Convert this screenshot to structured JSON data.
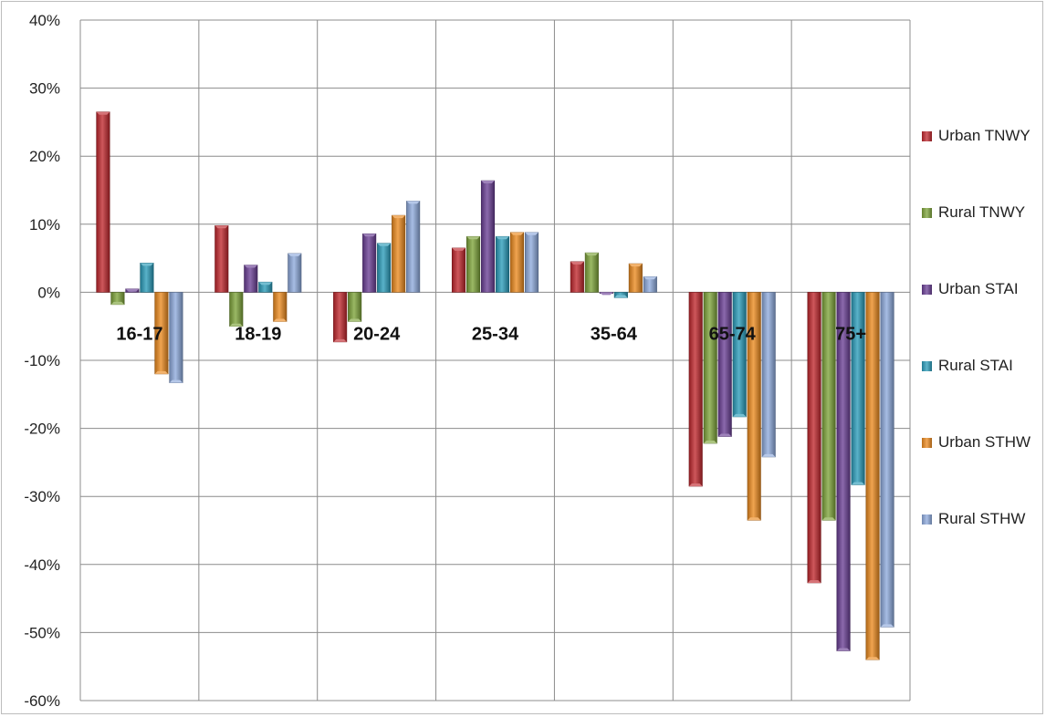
{
  "chart_data": {
    "type": "bar",
    "categories": [
      "16-17",
      "18-19",
      "20-24",
      "25-34",
      "35-64",
      "65-74",
      "75+"
    ],
    "ylim": [
      -0.6,
      0.4
    ],
    "yticks": [
      "40%",
      "30%",
      "20%",
      "10%",
      "0%",
      "-10%",
      "-20%",
      "-30%",
      "-40%",
      "-50%",
      "-60%"
    ],
    "grid": true,
    "legend_position": "right",
    "series": [
      {
        "name": "Urban TNWY",
        "color": "#c0272d",
        "values": [
          0.265,
          0.098,
          -0.073,
          0.065,
          0.045,
          -0.285,
          -0.427
        ]
      },
      {
        "name": "Rural TNWY",
        "color": "#7ea43a",
        "values": [
          -0.018,
          -0.05,
          -0.043,
          0.082,
          0.058,
          -0.222,
          -0.335
        ]
      },
      {
        "name": "Urban STAI",
        "color": "#6a3f95",
        "values": [
          0.005,
          0.04,
          0.086,
          0.164,
          0.0,
          -0.212,
          -0.527
        ]
      },
      {
        "name": "Rural STAI",
        "color": "#2a9cba",
        "values": [
          0.043,
          0.015,
          0.072,
          0.082,
          -0.008,
          -0.183,
          -0.283
        ]
      },
      {
        "name": "Urban STHW",
        "color": "#ec8a1f",
        "values": [
          -0.12,
          -0.043,
          0.113,
          0.088,
          0.042,
          -0.335,
          -0.54
        ]
      },
      {
        "name": "Rural STHW",
        "color": "#8eaadd",
        "values": [
          -0.133,
          0.057,
          0.134,
          0.088,
          0.023,
          -0.242,
          -0.492
        ]
      }
    ]
  }
}
